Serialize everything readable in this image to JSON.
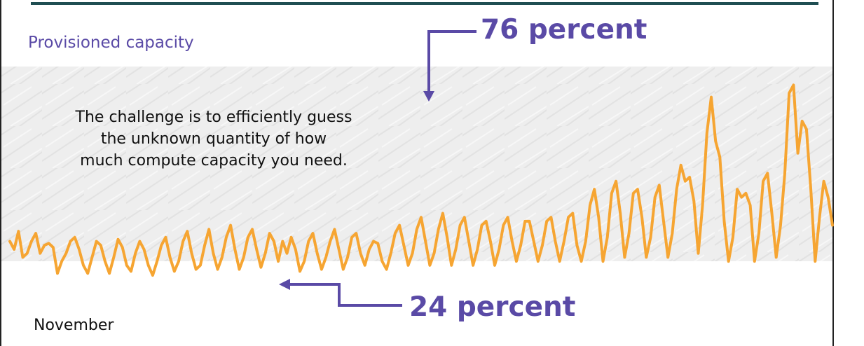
{
  "slide": {
    "subtitle": "Provisioned capacity",
    "callout_lines": [
      "The challenge is to efficiently guess",
      "the unknown quantity of how",
      "much compute capacity you need."
    ],
    "month_label": "November"
  },
  "annotations": {
    "top": "76 percent",
    "bottom": "24 percent"
  },
  "colors": {
    "line": "#f6a532",
    "accent": "#5a4aa6",
    "band": "#efefef",
    "rule": "#1f4e52"
  },
  "chart_data": {
    "type": "line",
    "title": "",
    "xlabel": "November",
    "ylabel": "",
    "ylim": [
      0,
      100
    ],
    "grid": false,
    "shaded_band": [
      24,
      76
    ],
    "series": [
      {
        "name": "",
        "values": [
          18,
          14,
          23,
          10,
          12,
          18,
          22,
          12,
          16,
          17,
          15,
          2,
          8,
          12,
          18,
          20,
          14,
          6,
          2,
          10,
          18,
          16,
          8,
          2,
          10,
          19,
          15,
          6,
          3,
          12,
          18,
          14,
          6,
          1,
          8,
          16,
          20,
          10,
          3,
          8,
          18,
          23,
          12,
          4,
          6,
          16,
          24,
          12,
          4,
          10,
          20,
          26,
          14,
          4,
          10,
          20,
          24,
          14,
          5,
          12,
          22,
          18,
          8,
          18,
          12,
          20,
          14,
          3,
          8,
          18,
          22,
          12,
          4,
          10,
          18,
          24,
          14,
          4,
          10,
          20,
          22,
          12,
          6,
          14,
          18,
          17,
          8,
          4,
          12,
          22,
          26,
          16,
          6,
          12,
          24,
          30,
          18,
          6,
          12,
          24,
          32,
          20,
          6,
          14,
          26,
          30,
          18,
          6,
          14,
          26,
          28,
          18,
          6,
          14,
          26,
          30,
          18,
          8,
          16,
          28,
          28,
          18,
          8,
          16,
          28,
          30,
          18,
          8,
          18,
          30,
          32,
          16,
          8,
          18,
          36,
          44,
          30,
          8,
          20,
          42,
          48,
          32,
          10,
          22,
          42,
          44,
          30,
          10,
          20,
          40,
          46,
          28,
          10,
          22,
          44,
          56,
          48,
          50,
          38,
          12,
          36,
          72,
          90,
          68,
          60,
          28,
          8,
          20,
          44,
          40,
          42,
          36,
          8,
          22,
          48,
          52,
          32,
          10,
          26,
          52,
          92,
          96,
          62,
          78,
          74,
          44,
          8,
          30,
          48,
          40,
          26
        ]
      }
    ]
  }
}
